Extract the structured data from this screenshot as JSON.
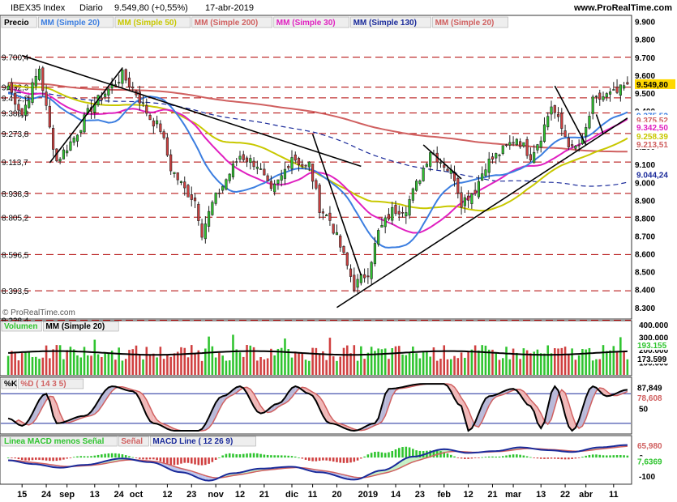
{
  "header": {
    "instrument": "IBEX35 Index",
    "period": "Diario",
    "last": "9.549,80 (+0,55%)",
    "date": "17-abr-2019",
    "site": "www.ProRealTime.com"
  },
  "watermark": "© ProRealTime.com",
  "colors": {
    "up": "#2fc42f",
    "down": "#d04040",
    "bg": "#ffffff",
    "grid": "#b00000",
    "ma20": "#3c7ee0",
    "ma50": "#c8c800",
    "ma200": "#d06060",
    "ma30": "#e020c0",
    "ma130": "#1a2a9a"
  },
  "chart_data": [
    {
      "type": "candlestick",
      "panel": "price",
      "legend": [
        {
          "label": "Precio",
          "color": "#000000"
        },
        {
          "label": "MM (Simple 20)",
          "color": "#3c7ee0"
        },
        {
          "label": "MM (Simple 50)",
          "color": "#c8c800"
        },
        {
          "label": "MM (Simple 200)",
          "color": "#d06060"
        },
        {
          "label": "MM (Simple 30)",
          "color": "#e020c0"
        },
        {
          "label": "MM (Simple 130)",
          "color": "#1a2a9a"
        },
        {
          "label": "MM (Simple 20)",
          "color": "#d06060"
        }
      ],
      "ylim": [
        8240,
        9930
      ],
      "y_ticks": [
        "9.900",
        "9.800",
        "9.700",
        "9.600",
        "9.500",
        "9.400",
        "9.300",
        "9.200",
        "9.100",
        "9.000",
        "8.900",
        "8.800",
        "8.700",
        "8.600",
        "8.500",
        "8.400",
        "8.300"
      ],
      "support_levels": [
        {
          "label": "9.700,4",
          "value": 9700.4
        },
        {
          "label": "9.532,9",
          "value": 9532.9
        },
        {
          "label": "9.472,9",
          "value": 9472.9
        },
        {
          "label": "9.388,8",
          "value": 9388.8
        },
        {
          "label": "9.273,8",
          "value": 9273.8
        },
        {
          "label": "9.113,7",
          "value": 9113.7
        },
        {
          "label": "8.938,3",
          "value": 8938.3
        },
        {
          "label": "8.805,2",
          "value": 8805.2
        },
        {
          "label": "8.596,5",
          "value": 8596.5
        },
        {
          "label": "8.393,5",
          "value": 8393.5
        },
        {
          "label": "8.228,4",
          "value": 8228.4
        }
      ],
      "price_badges": [
        {
          "label": "9.549,80",
          "value": 9549.8,
          "color": "#ffd800"
        },
        {
          "label": "9.375,52",
          "value": 9375.5,
          "color": "#3c7ee0"
        },
        {
          "label": "9.375,52",
          "value": 9350.0,
          "color": "#d06060"
        },
        {
          "label": "9.342,50",
          "value": 9310.0,
          "color": "#e020c0"
        },
        {
          "label": "9.258,39",
          "value": 9258.4,
          "color": "#c8c800"
        },
        {
          "label": "9.213,51",
          "value": 9213.5,
          "color": "#d06060"
        },
        {
          "label": "9.044,24",
          "value": 9044.2,
          "color": "#1a2a9a"
        }
      ],
      "trend_lines": [
        {
          "from": [
            "2018-08-15",
            9710
          ],
          "to": [
            "2018-12-31",
            9090
          ]
        },
        {
          "from": [
            "2018-08-27",
            9110
          ],
          "to": [
            "2018-09-25",
            9640
          ]
        },
        {
          "from": [
            "2018-12-11",
            9270
          ],
          "to": [
            "2018-12-31",
            8480
          ]
        },
        {
          "from": [
            "2018-12-20",
            8300
          ],
          "to": [
            "2019-04-17",
            9360
          ]
        },
        {
          "from": [
            "2019-01-24",
            9210
          ],
          "to": [
            "2019-02-08",
            9020
          ]
        },
        {
          "from": [
            "2019-03-19",
            9540
          ],
          "to": [
            "2019-04-01",
            9210
          ]
        },
        {
          "from": [
            "2019-04-04",
            9380
          ],
          "to": [
            "2019-04-08",
            9270
          ]
        }
      ],
      "anchors": [
        [
          "2018-08-09",
          9540
        ],
        [
          "2018-08-15",
          9380
        ],
        [
          "2018-08-22",
          9640
        ],
        [
          "2018-08-27",
          9300
        ],
        [
          "2018-08-29",
          9120
        ],
        [
          "2018-09-05",
          9250
        ],
        [
          "2018-09-12",
          9420
        ],
        [
          "2018-09-19",
          9520
        ],
        [
          "2018-09-25",
          9600
        ],
        [
          "2018-10-01",
          9500
        ],
        [
          "2018-10-05",
          9360
        ],
        [
          "2018-10-10",
          9300
        ],
        [
          "2018-10-15",
          9080
        ],
        [
          "2018-10-19",
          8960
        ],
        [
          "2018-10-24",
          8900
        ],
        [
          "2018-10-26",
          8720
        ],
        [
          "2018-10-31",
          8880
        ],
        [
          "2018-11-07",
          9050
        ],
        [
          "2018-11-12",
          9150
        ],
        [
          "2018-11-19",
          9100
        ],
        [
          "2018-11-23",
          8940
        ],
        [
          "2018-11-28",
          9030
        ],
        [
          "2018-12-03",
          9150
        ],
        [
          "2018-12-07",
          9080
        ],
        [
          "2018-12-10",
          9100
        ],
        [
          "2018-12-13",
          8860
        ],
        [
          "2018-12-18",
          8790
        ],
        [
          "2018-12-21",
          8640
        ],
        [
          "2018-12-27",
          8420
        ],
        [
          "2019-01-02",
          8500
        ],
        [
          "2019-01-07",
          8720
        ],
        [
          "2019-01-11",
          8840
        ],
        [
          "2019-01-17",
          8860
        ],
        [
          "2019-01-23",
          9030
        ],
        [
          "2019-01-28",
          9180
        ],
        [
          "2019-02-01",
          9100
        ],
        [
          "2019-02-06",
          9030
        ],
        [
          "2019-02-08",
          8890
        ],
        [
          "2019-02-14",
          8960
        ],
        [
          "2019-02-19",
          9100
        ],
        [
          "2019-02-26",
          9180
        ],
        [
          "2019-03-04",
          9250
        ],
        [
          "2019-03-08",
          9150
        ],
        [
          "2019-03-13",
          9260
        ],
        [
          "2019-03-18",
          9430
        ],
        [
          "2019-03-21",
          9300
        ],
        [
          "2019-03-26",
          9180
        ],
        [
          "2019-03-29",
          9220
        ],
        [
          "2019-04-03",
          9450
        ],
        [
          "2019-04-08",
          9480
        ],
        [
          "2019-04-12",
          9500
        ],
        [
          "2019-04-17",
          9550
        ]
      ],
      "x_ticks": [
        {
          "label": "15",
          "date": "2018-08-15"
        },
        {
          "label": "24",
          "date": "2018-08-24"
        },
        {
          "label": "sep",
          "date": "2018-09-03"
        },
        {
          "label": "13",
          "date": "2018-09-13"
        },
        {
          "label": "24",
          "date": "2018-09-24"
        },
        {
          "label": "oct",
          "date": "2018-10-01"
        },
        {
          "label": "12",
          "date": "2018-10-12"
        },
        {
          "label": "23",
          "date": "2018-10-23"
        },
        {
          "label": "nov",
          "date": "2018-11-01"
        },
        {
          "label": "12",
          "date": "2018-11-12"
        },
        {
          "label": "21",
          "date": "2018-11-21"
        },
        {
          "label": "dic",
          "date": "2018-12-03"
        },
        {
          "label": "11",
          "date": "2018-12-11"
        },
        {
          "label": "20",
          "date": "2018-12-20"
        },
        {
          "label": "2019",
          "date": "2019-01-02"
        },
        {
          "label": "14",
          "date": "2019-01-14"
        },
        {
          "label": "23",
          "date": "2019-01-23"
        },
        {
          "label": "feb",
          "date": "2019-02-01"
        },
        {
          "label": "12",
          "date": "2019-02-12"
        },
        {
          "label": "21",
          "date": "2019-02-21"
        },
        {
          "label": "mar",
          "date": "2019-03-01"
        },
        {
          "label": "13",
          "date": "2019-03-13"
        },
        {
          "label": "22",
          "date": "2019-03-22"
        },
        {
          "label": "abr",
          "date": "2019-04-01"
        },
        {
          "label": "11",
          "date": "2019-04-11"
        }
      ]
    },
    {
      "type": "bar",
      "panel": "volume",
      "legend": [
        {
          "label": "Volumen",
          "color": "#2fc42f"
        },
        {
          "label": "MM (Simple 20)",
          "color": "#000000"
        }
      ],
      "y_ticks": [
        "400.000",
        "300.000",
        "200.000",
        "100.000"
      ],
      "ylim": [
        0,
        420000
      ],
      "badges": [
        {
          "label": "193.155",
          "value": 193155,
          "color": "#2fc42f"
        },
        {
          "label": "173.599",
          "value": 173599,
          "color": "#000000"
        }
      ],
      "ma_level": 175000
    },
    {
      "type": "line",
      "panel": "stochastic",
      "legend": [
        {
          "label": "%K",
          "color": "#000000"
        },
        {
          "label": "%D ( 14 3 5)",
          "color": "#d06060"
        }
      ],
      "y_ticks": [
        "50"
      ],
      "ylim": [
        0,
        110
      ],
      "levels": [
        80,
        20
      ],
      "badges": [
        {
          "label": "87,849",
          "value": 87.8,
          "color": "#000000"
        },
        {
          "label": "78,608",
          "value": 78.6,
          "color": "#d06060"
        }
      ],
      "k_anchors": [
        [
          "2018-08-09",
          30
        ],
        [
          "2018-08-15",
          15
        ],
        [
          "2018-08-24",
          80
        ],
        [
          "2018-08-29",
          20
        ],
        [
          "2018-09-10",
          35
        ],
        [
          "2018-09-20",
          95
        ],
        [
          "2018-09-28",
          85
        ],
        [
          "2018-10-08",
          20
        ],
        [
          "2018-10-16",
          5
        ],
        [
          "2018-10-25",
          5
        ],
        [
          "2018-11-05",
          75
        ],
        [
          "2018-11-12",
          95
        ],
        [
          "2018-11-20",
          40
        ],
        [
          "2018-11-27",
          60
        ],
        [
          "2018-12-04",
          95
        ],
        [
          "2018-12-10",
          80
        ],
        [
          "2018-12-18",
          20
        ],
        [
          "2018-12-27",
          5
        ],
        [
          "2019-01-04",
          20
        ],
        [
          "2019-01-10",
          90
        ],
        [
          "2019-01-24",
          100
        ],
        [
          "2019-02-01",
          100
        ],
        [
          "2019-02-08",
          55
        ],
        [
          "2019-02-12",
          5
        ],
        [
          "2019-02-20",
          75
        ],
        [
          "2019-03-01",
          90
        ],
        [
          "2019-03-08",
          55
        ],
        [
          "2019-03-13",
          10
        ],
        [
          "2019-03-19",
          95
        ],
        [
          "2019-03-26",
          5
        ],
        [
          "2019-04-03",
          95
        ],
        [
          "2019-04-09",
          75
        ],
        [
          "2019-04-17",
          88
        ]
      ]
    },
    {
      "type": "bar",
      "panel": "macd",
      "legend": [
        {
          "label": "Linea MACD menos Señal",
          "color": "#2fc42f"
        },
        {
          "label": "Señal",
          "color": "#d06060"
        },
        {
          "label": "MACD Line ( 12 26 9)",
          "color": "#1a2a9a"
        }
      ],
      "y_ticks": [
        "0",
        "-100"
      ],
      "ylim": [
        -140,
        110
      ],
      "badges": [
        {
          "label": "65,980",
          "value": 66.0,
          "color": "#d06060"
        },
        {
          "label": "7,6369",
          "value": 7.64,
          "color": "#2fc42f"
        }
      ],
      "macd_anchors": [
        [
          "2018-08-09",
          -15
        ],
        [
          "2018-08-20",
          -35
        ],
        [
          "2018-08-30",
          -55
        ],
        [
          "2018-09-10",
          -40
        ],
        [
          "2018-09-25",
          -5
        ],
        [
          "2018-10-05",
          -25
        ],
        [
          "2018-10-18",
          -80
        ],
        [
          "2018-10-30",
          -125
        ],
        [
          "2018-11-08",
          -85
        ],
        [
          "2018-11-20",
          -60
        ],
        [
          "2018-12-03",
          -50
        ],
        [
          "2018-12-13",
          -80
        ],
        [
          "2018-12-27",
          -120
        ],
        [
          "2019-01-08",
          -70
        ],
        [
          "2019-01-20",
          5
        ],
        [
          "2019-02-01",
          45
        ],
        [
          "2019-02-12",
          25
        ],
        [
          "2019-02-22",
          35
        ],
        [
          "2019-03-05",
          55
        ],
        [
          "2019-03-15",
          40
        ],
        [
          "2019-03-26",
          30
        ],
        [
          "2019-04-05",
          55
        ],
        [
          "2019-04-17",
          68
        ]
      ]
    }
  ]
}
